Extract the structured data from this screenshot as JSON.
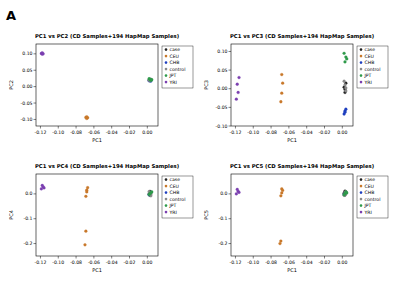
{
  "figure_label": "A",
  "chart_data": [
    {
      "type": "scatter",
      "title": "PC1 vs PC2 (CD Samples+194 HapMap Samples)",
      "x_label": "PC1",
      "y_label": "PC2",
      "legend": "right",
      "grid": false,
      "marker": "circle",
      "xlim": [
        -0.125,
        0.012
      ],
      "ylim": [
        -0.12,
        0.13
      ],
      "xticks": [
        {
          "value": -0.12,
          "label": "-0.12"
        },
        {
          "value": -0.1,
          "label": "-0.10"
        },
        {
          "value": -0.08,
          "label": "-0.08"
        },
        {
          "value": -0.06,
          "label": "-0.06"
        },
        {
          "value": -0.04,
          "label": "-0.04"
        },
        {
          "value": -0.02,
          "label": "-0.02"
        },
        {
          "value": 0,
          "label": "0.00"
        }
      ],
      "yticks": [
        {
          "value": -0.1,
          "label": "-0.10"
        },
        {
          "value": -0.05,
          "label": "-0.05"
        },
        {
          "value": 0,
          "label": "0.00"
        },
        {
          "value": 0.05,
          "label": "0.05"
        },
        {
          "value": 0.1,
          "label": "0.10"
        }
      ],
      "series": [
        {
          "name": "case",
          "color": "#222222",
          "x": [
            0.003,
            0.002,
            0.004,
            0.003
          ],
          "values": [
            0.019,
            0.02,
            0.022,
            0.018
          ]
        },
        {
          "name": "CEU",
          "color": "#c8782a",
          "x": [
            -0.069,
            -0.068,
            -0.067,
            -0.068
          ],
          "values": [
            -0.094,
            -0.097,
            -0.095,
            -0.092
          ]
        },
        {
          "name": "CHB",
          "color": "#1f3fbf",
          "x": [
            0.002,
            0.003,
            0.004,
            0.003
          ],
          "values": [
            0.018,
            0.021,
            0.017,
            0.02
          ]
        },
        {
          "name": "control",
          "color": "#8a8a8a",
          "x": [
            0.004,
            0.003,
            0.002,
            0.004
          ],
          "values": [
            0.021,
            0.023,
            0.019,
            0.02
          ]
        },
        {
          "name": "JPT",
          "color": "#2e9a4a",
          "x": [
            0.003,
            0.004,
            0.002,
            0.005
          ],
          "values": [
            0.022,
            0.019,
            0.024,
            0.021
          ]
        },
        {
          "name": "YRI",
          "color": "#7b3fb0",
          "x": [
            -0.119,
            -0.118,
            -0.118,
            -0.117
          ],
          "values": [
            0.101,
            0.099,
            0.103,
            0.1
          ]
        }
      ]
    },
    {
      "type": "scatter",
      "title": "PC1 vs PC3 (CD Samples+194 HapMap Samples)",
      "x_label": "PC1",
      "y_label": "PC3",
      "legend": "right",
      "grid": false,
      "marker": "circle",
      "xlim": [
        -0.125,
        0.012
      ],
      "ylim": [
        -0.1,
        0.12
      ],
      "xticks": [
        {
          "value": -0.12,
          "label": "-0.12"
        },
        {
          "value": -0.1,
          "label": "-0.10"
        },
        {
          "value": -0.08,
          "label": "-0.08"
        },
        {
          "value": -0.06,
          "label": "-0.06"
        },
        {
          "value": -0.04,
          "label": "-0.04"
        },
        {
          "value": -0.02,
          "label": "-0.02"
        },
        {
          "value": 0,
          "label": "0.00"
        }
      ],
      "yticks": [
        {
          "value": -0.1,
          "label": "-0.10"
        },
        {
          "value": -0.05,
          "label": "-0.05"
        },
        {
          "value": 0,
          "label": "0.00"
        },
        {
          "value": 0.05,
          "label": "0.05"
        },
        {
          "value": 0.1,
          "label": "0.10"
        }
      ],
      "series": [
        {
          "name": "case",
          "color": "#222222",
          "x": [
            0.003,
            0.002,
            0.004,
            0.003
          ],
          "values": [
            -0.01,
            0.004,
            0.015,
            -0.002
          ]
        },
        {
          "name": "CEU",
          "color": "#c8782a",
          "x": [
            -0.069,
            -0.068,
            -0.067,
            -0.068
          ],
          "values": [
            -0.035,
            -0.012,
            0.015,
            0.038
          ]
        },
        {
          "name": "CHB",
          "color": "#1f3fbf",
          "x": [
            0.002,
            0.003,
            0.004,
            0.003
          ],
          "values": [
            -0.068,
            -0.06,
            -0.055,
            -0.063
          ]
        },
        {
          "name": "control",
          "color": "#8a8a8a",
          "x": [
            0.004,
            0.003,
            0.002,
            0.004
          ],
          "values": [
            -0.006,
            0.01,
            0.02,
            0.002
          ]
        },
        {
          "name": "JPT",
          "color": "#2e9a4a",
          "x": [
            0.003,
            0.004,
            0.002,
            0.005
          ],
          "values": [
            0.072,
            0.085,
            0.095,
            0.08
          ]
        },
        {
          "name": "YRI",
          "color": "#7b3fb0",
          "x": [
            -0.119,
            -0.117,
            -0.118,
            -0.116
          ],
          "values": [
            -0.028,
            -0.01,
            0.012,
            0.03
          ]
        }
      ]
    },
    {
      "type": "scatter",
      "title": "PC1 vs PC4 (CD Samples+194 HapMap Samples)",
      "x_label": "PC1",
      "y_label": "PC4",
      "legend": "right",
      "grid": false,
      "marker": "circle",
      "xlim": [
        -0.125,
        0.012
      ],
      "ylim": [
        -0.25,
        0.08
      ],
      "xticks": [
        {
          "value": -0.12,
          "label": "-0.12"
        },
        {
          "value": -0.1,
          "label": "-0.10"
        },
        {
          "value": -0.08,
          "label": "-0.08"
        },
        {
          "value": -0.06,
          "label": "-0.06"
        },
        {
          "value": -0.04,
          "label": "-0.04"
        },
        {
          "value": -0.02,
          "label": "-0.02"
        },
        {
          "value": 0,
          "label": "0.00"
        }
      ],
      "yticks": [
        {
          "value": -0.2,
          "label": "-0.2"
        },
        {
          "value": -0.1,
          "label": "-0.1"
        },
        {
          "value": 0,
          "label": "0.0"
        }
      ],
      "series": [
        {
          "name": "case",
          "color": "#222222",
          "x": [
            0.003,
            0.002,
            0.004,
            0.003
          ],
          "values": [
            -0.006,
            0.0,
            0.004,
            0.01
          ]
        },
        {
          "name": "CEU",
          "color": "#c8782a",
          "x": [
            -0.069,
            -0.068,
            -0.067,
            -0.068,
            -0.069,
            -0.07
          ],
          "values": [
            -0.01,
            0.008,
            0.025,
            0.015,
            -0.15,
            -0.205
          ]
        },
        {
          "name": "CHB",
          "color": "#1f3fbf",
          "x": [
            0.002,
            0.003,
            0.004,
            0.003
          ],
          "values": [
            -0.004,
            0.002,
            0.006,
            -0.001
          ]
        },
        {
          "name": "control",
          "color": "#8a8a8a",
          "x": [
            0.004,
            0.003,
            0.002,
            0.004
          ],
          "values": [
            -0.002,
            0.006,
            0.009,
            -0.008
          ]
        },
        {
          "name": "JPT",
          "color": "#2e9a4a",
          "x": [
            0.003,
            0.004,
            0.002,
            0.005
          ],
          "values": [
            0.001,
            0.005,
            -0.003,
            0.008
          ]
        },
        {
          "name": "YRI",
          "color": "#7b3fb0",
          "x": [
            -0.119,
            -0.117,
            -0.118,
            -0.116
          ],
          "values": [
            0.02,
            0.028,
            0.034,
            0.024
          ]
        }
      ]
    },
    {
      "type": "scatter",
      "title": "PC1 vs PC5 (CD Samples+194 HapMap Samples)",
      "x_label": "PC1",
      "y_label": "PC5",
      "legend": "right",
      "grid": false,
      "marker": "circle",
      "xlim": [
        -0.125,
        0.012
      ],
      "ylim": [
        -0.25,
        0.08
      ],
      "xticks": [
        {
          "value": -0.12,
          "label": "-0.12"
        },
        {
          "value": -0.1,
          "label": "-0.10"
        },
        {
          "value": -0.08,
          "label": "-0.08"
        },
        {
          "value": -0.06,
          "label": "-0.06"
        },
        {
          "value": -0.04,
          "label": "-0.04"
        },
        {
          "value": -0.02,
          "label": "-0.02"
        },
        {
          "value": 0,
          "label": "0.00"
        }
      ],
      "yticks": [
        {
          "value": -0.2,
          "label": "-0.2"
        },
        {
          "value": -0.1,
          "label": "-0.1"
        },
        {
          "value": 0,
          "label": "0.0"
        }
      ],
      "series": [
        {
          "name": "case",
          "color": "#222222",
          "x": [
            0.003,
            0.002,
            0.004,
            0.003
          ],
          "values": [
            -0.005,
            0.003,
            0.007,
            0.011
          ]
        },
        {
          "name": "CEU",
          "color": "#c8782a",
          "x": [
            -0.069,
            -0.068,
            -0.067,
            -0.068,
            -0.069,
            -0.07
          ],
          "values": [
            -0.008,
            0.004,
            0.014,
            0.02,
            -0.19,
            -0.2
          ]
        },
        {
          "name": "CHB",
          "color": "#1f3fbf",
          "x": [
            0.002,
            0.003,
            0.004,
            0.003
          ],
          "values": [
            -0.003,
            0.002,
            0.006,
            0.0
          ]
        },
        {
          "name": "control",
          "color": "#8a8a8a",
          "x": [
            0.004,
            0.003,
            0.002,
            0.004
          ],
          "values": [
            0.0,
            0.005,
            -0.006,
            0.009
          ]
        },
        {
          "name": "JPT",
          "color": "#2e9a4a",
          "x": [
            0.003,
            0.004,
            0.002,
            0.005
          ],
          "values": [
            0.001,
            0.008,
            -0.004,
            0.004
          ]
        },
        {
          "name": "YRI",
          "color": "#7b3fb0",
          "x": [
            -0.119,
            -0.117,
            -0.118,
            -0.116
          ],
          "values": [
            0.0,
            0.01,
            0.018,
            0.006
          ]
        }
      ]
    }
  ]
}
